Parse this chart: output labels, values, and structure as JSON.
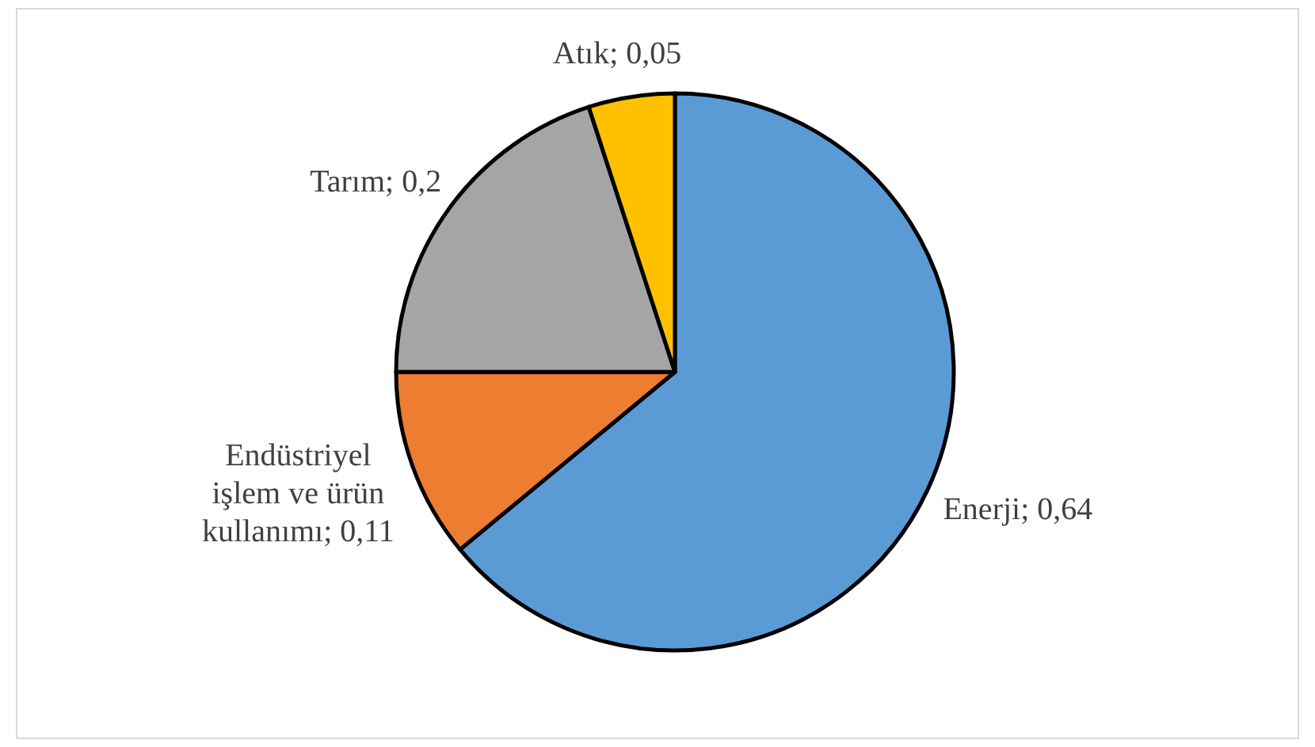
{
  "chart_data": {
    "type": "pie",
    "categories": [
      "Enerji",
      "Endüstriyel işlem ve ürün kullanımı",
      "Tarım",
      "Atık"
    ],
    "values": [
      0.64,
      0.11,
      0.2,
      0.05
    ],
    "colors": [
      "#5b9bd5",
      "#ed7d31",
      "#a5a5a5",
      "#ffc000"
    ],
    "value_labels": [
      "0,64",
      "0,11",
      "0,2",
      "0,05"
    ]
  }
}
